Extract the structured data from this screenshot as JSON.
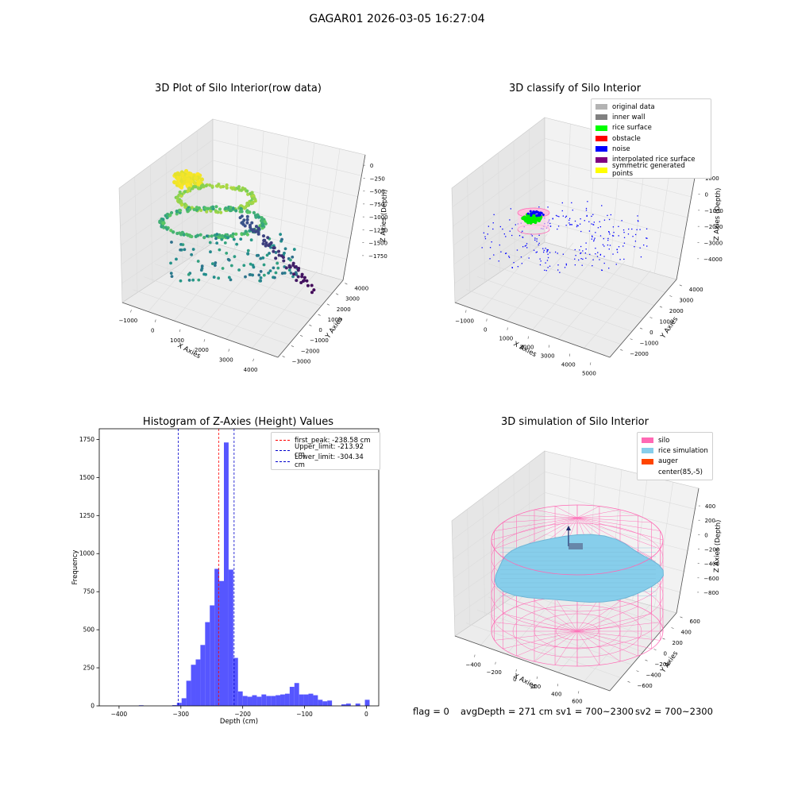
{
  "figure": {
    "suptitle": "GAGAR01 2026-03-05 16:27:04"
  },
  "panels": {
    "raw": {
      "title": "3D Plot of Silo Interior(row data)",
      "xlabel": "X Axies",
      "ylabel": "Y Axies",
      "zlabel": "Z Axies (Depth)",
      "xticks": [
        "−1000",
        "0",
        "1000",
        "2000",
        "3000",
        "4000"
      ],
      "yticks": [
        "−3000",
        "−2000",
        "−1000",
        "0",
        "1000",
        "2000",
        "3000",
        "4000"
      ],
      "zticks": [
        "0",
        "−250",
        "−500",
        "−750",
        "−1000",
        "−1250",
        "−1500",
        "−1750"
      ],
      "colormap": "viridis"
    },
    "classify": {
      "title": "3D classify of Silo Interior",
      "xlabel": "X Axies",
      "ylabel": "Y Axies",
      "zlabel": "Z Axies (Depth)",
      "xticks": [
        "−1000",
        "0",
        "1000",
        "2000",
        "3000",
        "4000",
        "5000"
      ],
      "yticks": [
        "−2000",
        "−1000",
        "0",
        "1000",
        "2000",
        "3000",
        "4000"
      ],
      "zticks": [
        "1000",
        "0",
        "−1000",
        "−2000",
        "−3000",
        "−4000"
      ],
      "legend": [
        {
          "label": "original data",
          "color": "#b3b3b3"
        },
        {
          "label": "inner wall",
          "color": "#808080"
        },
        {
          "label": "rice surface",
          "color": "#00ff00"
        },
        {
          "label": "obstacle",
          "color": "#ff0000"
        },
        {
          "label": "noise",
          "color": "#0000ff"
        },
        {
          "label": "interpolated rice surface",
          "color": "#800080"
        },
        {
          "label": "symmetric generated points",
          "color": "#ffff00"
        }
      ]
    },
    "simulation": {
      "title": "3D simulation of Silo Interior",
      "xlabel": "X Axies",
      "ylabel": "Y Axies",
      "zlabel": "Z Axies (Depth)",
      "xticks": [
        "−400",
        "−200",
        "0",
        "200",
        "400",
        "600"
      ],
      "yticks": [
        "−600",
        "−400",
        "−200",
        "0",
        "200",
        "400",
        "600"
      ],
      "zticks": [
        "400",
        "200",
        "0",
        "−200",
        "−400",
        "−600",
        "−800"
      ],
      "legend": [
        {
          "label": "silo",
          "color": "#ff69b4"
        },
        {
          "label": "rice simulation",
          "color": "#87ceeb"
        },
        {
          "label": "auger",
          "color": "#ff4500"
        },
        {
          "label": "center(85,-5)",
          "color": ""
        }
      ]
    }
  },
  "footer": {
    "flag": "flag = 0",
    "avg": "avgDepth = 271 cm",
    "sv1": "sv1 = 700~2300",
    "sv2": "sv2 = 700~2300"
  },
  "colors": {
    "hist_bar": "#4d4dff",
    "peak_line": "#ff0000",
    "limit_line": "#0000cc",
    "silo": "#ff69b4",
    "rice": "#87ceeb",
    "noise": "#0000ff",
    "rice_surface": "#00ff00"
  },
  "chart_data": [
    {
      "type": "histogram",
      "title": "Histogram of Z-Axies (Height) Values",
      "xlabel": "Depth (cm)",
      "ylabel": "Frequency",
      "xlim": [
        -432,
        20
      ],
      "ylim": [
        0,
        1820
      ],
      "xticks": [
        -400,
        -300,
        -200,
        -100,
        0
      ],
      "yticks": [
        0,
        250,
        500,
        750,
        1000,
        1250,
        1500,
        1750
      ],
      "bin_width": 7.6,
      "bins": [
        {
          "x": -368,
          "v": 4
        },
        {
          "x": -314,
          "v": 5
        },
        {
          "x": -306.4,
          "v": 20
        },
        {
          "x": -298.8,
          "v": 50
        },
        {
          "x": -291.2,
          "v": 165
        },
        {
          "x": -283.6,
          "v": 270
        },
        {
          "x": -276,
          "v": 305
        },
        {
          "x": -268.4,
          "v": 400
        },
        {
          "x": -260.8,
          "v": 550
        },
        {
          "x": -253.2,
          "v": 660
        },
        {
          "x": -245.6,
          "v": 900
        },
        {
          "x": -238,
          "v": 820
        },
        {
          "x": -230.4,
          "v": 1730
        },
        {
          "x": -222.8,
          "v": 895
        },
        {
          "x": -215.2,
          "v": 315
        },
        {
          "x": -207.6,
          "v": 95
        },
        {
          "x": -200,
          "v": 65
        },
        {
          "x": -192.4,
          "v": 60
        },
        {
          "x": -184.8,
          "v": 70
        },
        {
          "x": -177.2,
          "v": 60
        },
        {
          "x": -169.6,
          "v": 75
        },
        {
          "x": -162,
          "v": 65
        },
        {
          "x": -154.4,
          "v": 65
        },
        {
          "x": -146.8,
          "v": 70
        },
        {
          "x": -139.2,
          "v": 75
        },
        {
          "x": -131.6,
          "v": 80
        },
        {
          "x": -124,
          "v": 125
        },
        {
          "x": -116.4,
          "v": 150
        },
        {
          "x": -108.8,
          "v": 75
        },
        {
          "x": -101.2,
          "v": 75
        },
        {
          "x": -93.6,
          "v": 80
        },
        {
          "x": -86,
          "v": 70
        },
        {
          "x": -78.4,
          "v": 40
        },
        {
          "x": -70.8,
          "v": 30
        },
        {
          "x": -63.2,
          "v": 35
        },
        {
          "x": -40.4,
          "v": 10
        },
        {
          "x": -32.8,
          "v": 15
        },
        {
          "x": -17.6,
          "v": 15
        },
        {
          "x": -2.4,
          "v": 40
        }
      ],
      "lines": [
        {
          "name": "first_peak: -238.58 cm",
          "x": -238.58,
          "style": "peak"
        },
        {
          "name": "Upper_limit: -213.92 cm",
          "x": -213.92,
          "style": "limit"
        },
        {
          "name": "Lower_limit: -304.34 cm",
          "x": -304.34,
          "style": "limit"
        }
      ],
      "legend_position": "upper right",
      "grid": false
    }
  ]
}
